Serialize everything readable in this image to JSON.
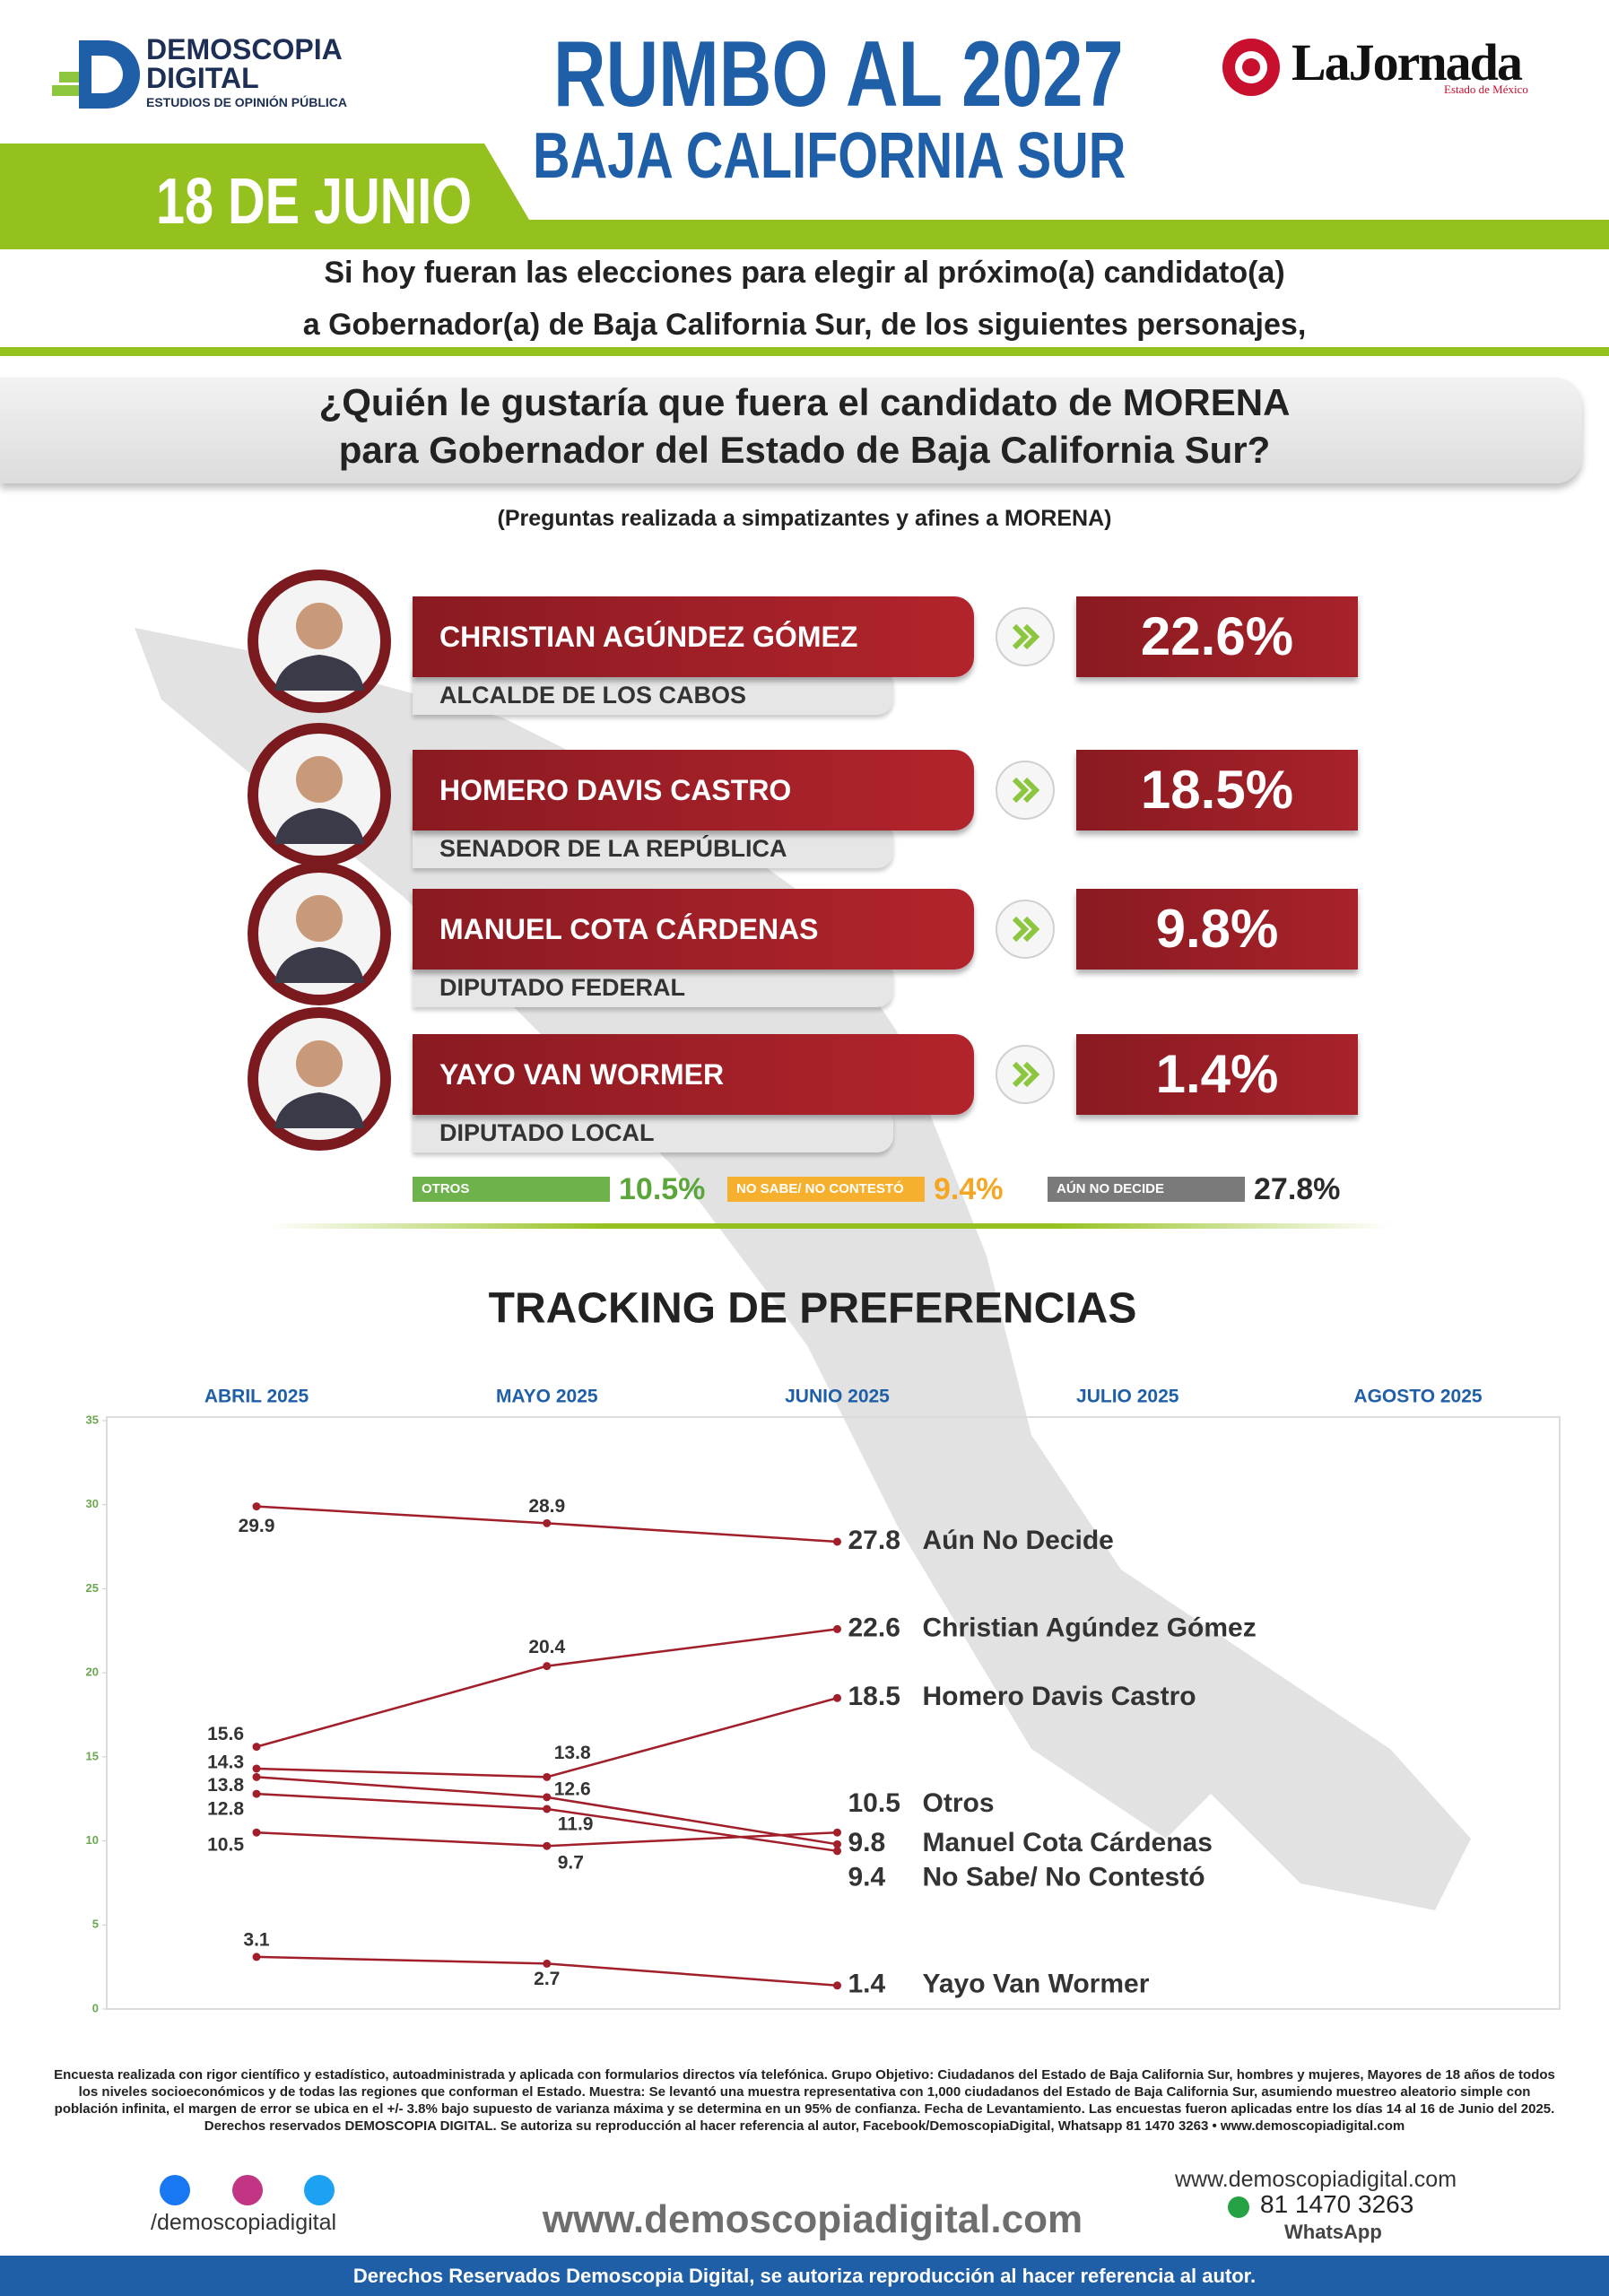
{
  "header": {
    "brand": [
      "DEMOSCOPIA",
      "DIGITAL"
    ],
    "brand_tagline": "ESTUDIOS DE OPINIÓN PÚBLICA",
    "title": "RUMBO AL 2027",
    "subtitle": "BAJA CALIFORNIA SUR",
    "date": "18 DE JUNIO",
    "partner": "LaJornada",
    "partner_region": "Estado de México"
  },
  "intro": [
    "Si hoy fueran las elecciones para elegir al próximo(a) candidato(a)",
    "a Gobernador(a) de Baja California Sur, de los siguientes personajes,"
  ],
  "question": [
    "¿Quién le gustaría que fuera el candidato de MORENA",
    "para Gobernador del Estado de Baja California Sur?"
  ],
  "note": "(Preguntas realizada a simpatizantes y afines a MORENA)",
  "candidates": [
    {
      "name": "CHRISTIAN AGÚNDEZ GÓMEZ",
      "role": "ALCALDE DE LOS CABOS",
      "share": "22.6%"
    },
    {
      "name": "HOMERO DAVIS CASTRO",
      "role": "SENADOR DE LA REPÚBLICA",
      "share": "18.5%"
    },
    {
      "name": "MANUEL COTA CÁRDENAS",
      "role": "DIPUTADO FEDERAL",
      "share": "9.8%"
    },
    {
      "name": "YAYO VAN WORMER",
      "role": "DIPUTADO LOCAL",
      "share": "1.4%"
    }
  ],
  "others": [
    {
      "label": "OTROS",
      "share": "10.5%",
      "color": "#6db24a",
      "value_color": "#5aa63a"
    },
    {
      "label": "NO SABE/ NO CONTESTÓ",
      "share": "9.4%",
      "color": "#f7b02e",
      "value_color": "#f5a623"
    },
    {
      "label": "AÚN NO DECIDE",
      "share": "27.8%",
      "color": "#7a7a7a",
      "value_color": "#2b2b2b"
    }
  ],
  "chart_data": {
    "type": "line",
    "title": "TRACKING DE PREFERENCIAS",
    "categories": [
      "ABRIL 2025",
      "MAYO 2025",
      "JUNIO 2025",
      "JULIO 2025",
      "AGOSTO 2025"
    ],
    "series": [
      {
        "name": "Aún No Decide",
        "color": "#a01f2a",
        "values": [
          29.9,
          28.9,
          27.8,
          null,
          null
        ]
      },
      {
        "name": "Christian Agúndez Gómez",
        "color": "#a01f2a",
        "values": [
          15.6,
          20.4,
          22.6,
          null,
          null
        ]
      },
      {
        "name": "Homero Davis Castro",
        "color": "#a01f2a",
        "values": [
          14.3,
          13.8,
          18.5,
          null,
          null
        ]
      },
      {
        "name": "Otros",
        "color": "#a01f2a",
        "values": [
          10.5,
          9.7,
          10.5,
          null,
          null
        ]
      },
      {
        "name": "Manuel Cota Cárdenas",
        "color": "#a01f2a",
        "values": [
          13.8,
          12.6,
          9.8,
          null,
          null
        ]
      },
      {
        "name": "No Sabe/ No Contestó",
        "color": "#a01f2a",
        "values": [
          12.8,
          11.9,
          9.4,
          null,
          null
        ]
      },
      {
        "name": "Yayo Van Wormer",
        "color": "#a01f2a",
        "values": [
          3.1,
          2.7,
          1.4,
          null,
          null
        ]
      }
    ],
    "ylim": [
      0,
      35
    ],
    "yticks": [
      0,
      5,
      10,
      15,
      20,
      25,
      30,
      35
    ],
    "grid": false
  },
  "footer": {
    "methodology": "Encuesta realizada con rigor científico y estadístico, autoadministrada y aplicada con formularios directos vía telefónica. Grupo Objetivo: Ciudadanos del Estado de Baja California Sur, hombres y mujeres, Mayores de 18 años de todos los niveles socioeconómicos y de todas las regiones que conforman el Estado. Muestra: Se levantó una muestra representativa con 1,000 ciudadanos del Estado de Baja California Sur, asumiendo muestreo aleatorio simple con población infinita, el margen de error se ubica en el +/- 3.8% bajo supuesto de varianza máxima y se determina en un 95% de confianza. Fecha de Levantamiento. Las encuestas fueron aplicadas entre los días 14 al 16 de Junio del 2025. Derechos reservados DEMOSCOPIA DIGITAL. Se autoriza su reproducción al hacer referencia al autor, Facebook/DemoscopiaDigital, Whatsapp 81 1470 3263 • www.demoscopiadigital.com",
    "social_handle": "/demoscopiadigital",
    "website": "www.demoscopiadigital.com",
    "website_small": "www.demoscopiadigital.com",
    "phone": "81 1470 3263",
    "phone_label": "WhatsApp",
    "rights": "Derechos Reservados Demoscopia Digital, se autoriza reproducción al hacer referencia al autor."
  }
}
